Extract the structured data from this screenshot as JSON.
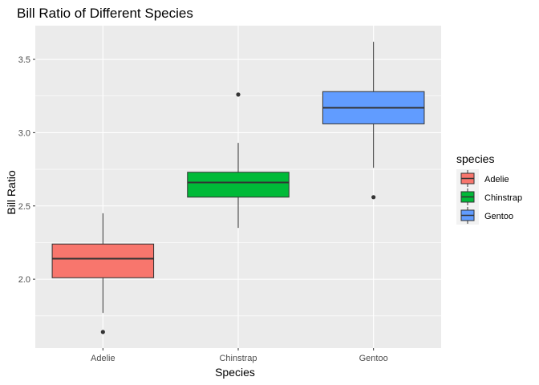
{
  "chart_data": {
    "type": "box",
    "title": "Bill Ratio of Different Species",
    "xlabel": "Species",
    "ylabel": "Bill Ratio",
    "ylim": [
      1.53,
      3.73
    ],
    "y_ticks": [
      2.0,
      2.5,
      3.0,
      3.5
    ],
    "y_tick_labels": [
      "2.0",
      "2.5",
      "3.0",
      "3.5"
    ],
    "categories": [
      "Adelie",
      "Chinstrap",
      "Gentoo"
    ],
    "grid": true,
    "legend": {
      "title": "species",
      "position": "right",
      "entries": [
        "Adelie",
        "Chinstrap",
        "Gentoo"
      ]
    },
    "series": [
      {
        "name": "Adelie",
        "color": "#F8766D",
        "whisker_low": 1.77,
        "q1": 2.01,
        "median": 2.14,
        "q3": 2.24,
        "whisker_high": 2.45,
        "outliers": [
          1.64
        ]
      },
      {
        "name": "Chinstrap",
        "color": "#00BA38",
        "whisker_low": 2.35,
        "q1": 2.56,
        "median": 2.66,
        "q3": 2.73,
        "whisker_high": 2.93,
        "outliers": [
          3.26
        ]
      },
      {
        "name": "Gentoo",
        "color": "#619CFF",
        "whisker_low": 2.76,
        "q1": 3.06,
        "median": 3.17,
        "q3": 3.28,
        "whisker_high": 3.62,
        "outliers": [
          2.56
        ]
      }
    ]
  }
}
